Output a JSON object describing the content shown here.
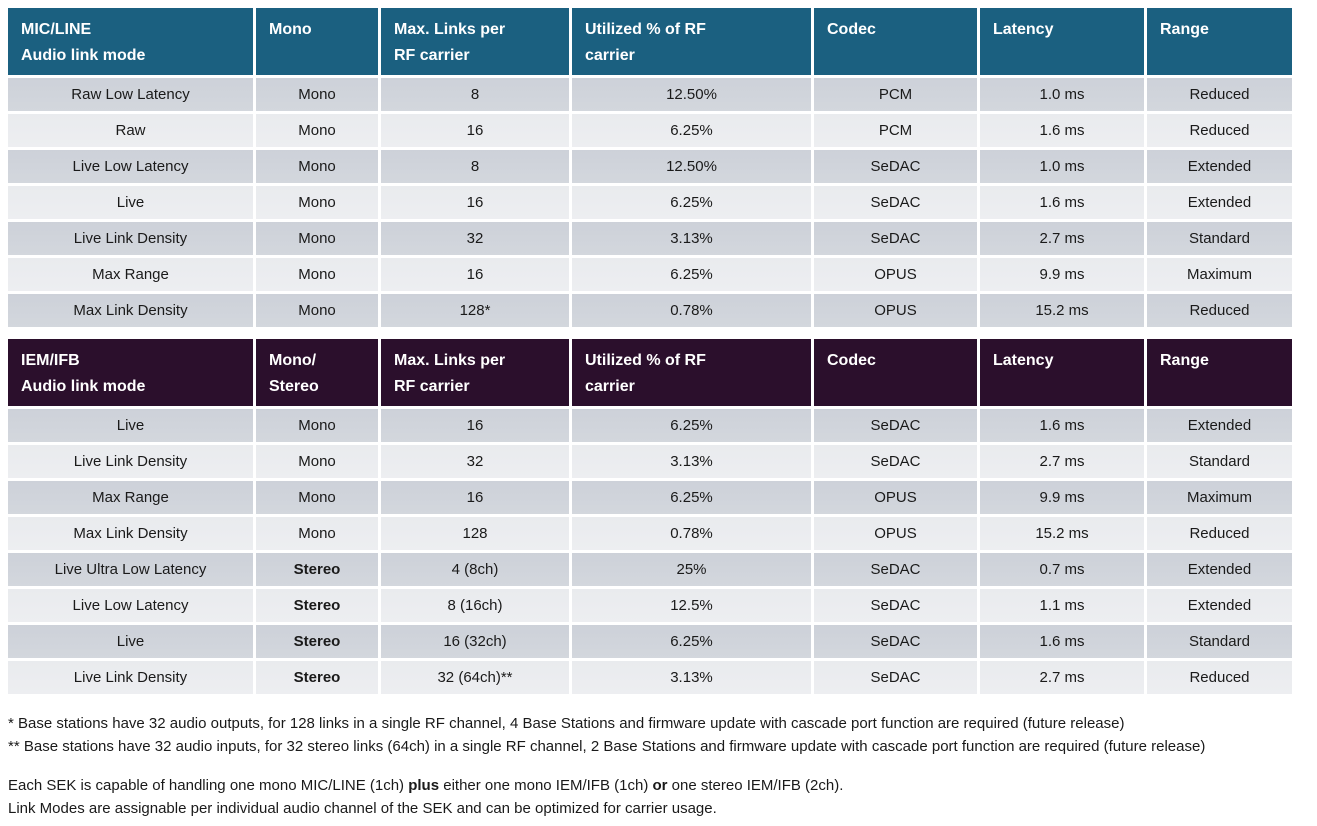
{
  "title": "Audio link mode specification tables",
  "colors": {
    "mic_line_header_bg": "#1b6080",
    "iem_ifb_header_bg": "#2b0f2c",
    "row_dark": "#cdd1d9",
    "row_light": "#e9ebee",
    "header_text": "#ffffff",
    "body_text": "#1a1a1a"
  },
  "tables": [
    {
      "name": "MIC/LINE",
      "columns": [
        "MIC/LINE\nAudio link mode",
        "Mono",
        "Max. Links per\nRF carrier",
        "Utilized % of RF\ncarrier",
        "Codec",
        "Latency",
        "Range"
      ],
      "rows": [
        {
          "cells": [
            "Raw Low Latency",
            "Mono",
            "8",
            "12.50%",
            "PCM",
            "1.0 ms",
            "Reduced"
          ],
          "bold_cols": []
        },
        {
          "cells": [
            "Raw",
            "Mono",
            "16",
            "6.25%",
            "PCM",
            "1.6 ms",
            "Reduced"
          ],
          "bold_cols": []
        },
        {
          "cells": [
            "Live Low Latency",
            "Mono",
            "8",
            "12.50%",
            "SeDAC",
            "1.0 ms",
            "Extended"
          ],
          "bold_cols": []
        },
        {
          "cells": [
            "Live",
            "Mono",
            "16",
            "6.25%",
            "SeDAC",
            "1.6 ms",
            "Extended"
          ],
          "bold_cols": []
        },
        {
          "cells": [
            "Live Link Density",
            "Mono",
            "32",
            "3.13%",
            "SeDAC",
            "2.7 ms",
            "Standard"
          ],
          "bold_cols": []
        },
        {
          "cells": [
            "Max Range",
            "Mono",
            "16",
            "6.25%",
            "OPUS",
            "9.9 ms",
            "Maximum"
          ],
          "bold_cols": []
        },
        {
          "cells": [
            "Max Link Density",
            "Mono",
            "128*",
            "0.78%",
            "OPUS",
            "15.2 ms",
            "Reduced"
          ],
          "bold_cols": []
        }
      ]
    },
    {
      "name": "IEM/IFB",
      "columns": [
        "IEM/IFB\nAudio link mode",
        "Mono/\nStereo",
        "Max. Links per\nRF carrier",
        "Utilized % of RF\ncarrier",
        "Codec",
        "Latency",
        "Range"
      ],
      "rows": [
        {
          "cells": [
            "Live",
            "Mono",
            "16",
            "6.25%",
            "SeDAC",
            "1.6 ms",
            "Extended"
          ],
          "bold_cols": []
        },
        {
          "cells": [
            "Live Link Density",
            "Mono",
            "32",
            "3.13%",
            "SeDAC",
            "2.7 ms",
            "Standard"
          ],
          "bold_cols": []
        },
        {
          "cells": [
            "Max Range",
            "Mono",
            "16",
            "6.25%",
            "OPUS",
            "9.9 ms",
            "Maximum"
          ],
          "bold_cols": []
        },
        {
          "cells": [
            "Max Link Density",
            "Mono",
            "128",
            "0.78%",
            "OPUS",
            "15.2 ms",
            "Reduced"
          ],
          "bold_cols": []
        },
        {
          "cells": [
            "Live Ultra Low Latency",
            "Stereo",
            "4 (8ch)",
            "25%",
            "SeDAC",
            "0.7 ms",
            "Extended"
          ],
          "bold_cols": [
            1
          ]
        },
        {
          "cells": [
            "Live Low Latency",
            "Stereo",
            "8 (16ch)",
            "12.5%",
            "SeDAC",
            "1.1 ms",
            "Extended"
          ],
          "bold_cols": [
            1
          ]
        },
        {
          "cells": [
            "Live",
            "Stereo",
            "16 (32ch)",
            "6.25%",
            "SeDAC",
            "1.6 ms",
            "Standard"
          ],
          "bold_cols": [
            1
          ]
        },
        {
          "cells": [
            "Live Link Density",
            "Stereo",
            "32 (64ch)**",
            "3.13%",
            "SeDAC",
            "2.7 ms",
            "Reduced"
          ],
          "bold_cols": [
            1
          ]
        }
      ]
    }
  ],
  "footnotes": [
    {
      "segments": [
        {
          "t": "* Base stations have 32 audio outputs, for 128 links in a single RF channel, 4 Base Stations and firmware update with cascade port function are required (future release)",
          "b": false
        }
      ]
    },
    {
      "segments": [
        {
          "t": "** Base stations have 32 audio inputs, for 32 stereo links (64ch) in a single RF channel, 2 Base Stations and firmware update with cascade port function are required (future release)",
          "b": false
        }
      ]
    }
  ],
  "notes": [
    {
      "segments": [
        {
          "t": "Each SEK is capable of handling one mono MIC/LINE (1ch) ",
          "b": false
        },
        {
          "t": "plus",
          "b": true
        },
        {
          "t": " either one mono IEM/IFB (1ch) ",
          "b": false
        },
        {
          "t": "or",
          "b": true
        },
        {
          "t": " one stereo IEM/IFB (2ch).",
          "b": false
        }
      ]
    },
    {
      "segments": [
        {
          "t": "Link Modes are assignable per individual audio channel of the SEK and can be optimized for carrier usage.",
          "b": false
        }
      ]
    }
  ]
}
